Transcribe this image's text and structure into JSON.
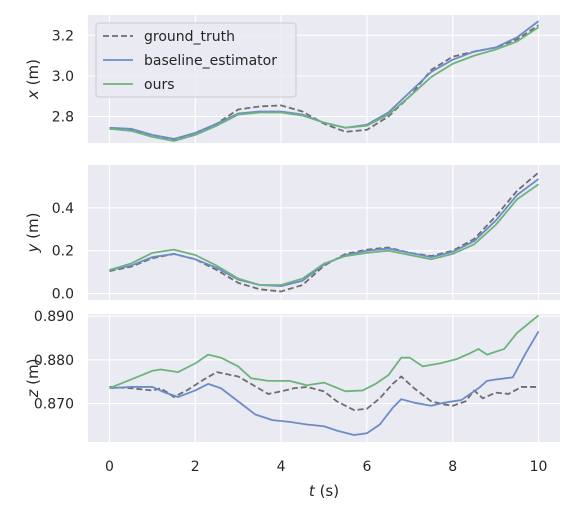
{
  "chart_data": [
    {
      "type": "line",
      "ylabel_var": "x",
      "ylabel_unit": " (m)",
      "ylim": [
        2.67,
        3.3
      ],
      "yticks": [
        "2.8",
        "3.0",
        "3.2"
      ],
      "ytick_values": [
        2.8,
        3.0,
        3.2
      ],
      "grid": true,
      "legend": "top-left",
      "series": [
        {
          "name": "ground_truth",
          "style": "dashed",
          "color": "#6e6e6e",
          "points": [
            [
              0,
              2.74
            ],
            [
              0.5,
              2.735
            ],
            [
              1,
              2.7
            ],
            [
              1.5,
              2.685
            ],
            [
              2,
              2.71
            ],
            [
              2.5,
              2.765
            ],
            [
              3,
              2.835
            ],
            [
              3.5,
              2.85
            ],
            [
              4,
              2.855
            ],
            [
              4.5,
              2.825
            ],
            [
              5,
              2.765
            ],
            [
              5.5,
              2.725
            ],
            [
              6,
              2.735
            ],
            [
              6.5,
              2.8
            ],
            [
              7,
              2.9
            ],
            [
              7.5,
              3.03
            ],
            [
              8,
              3.095
            ],
            [
              8.5,
              3.12
            ],
            [
              9,
              3.14
            ],
            [
              9.5,
              3.18
            ],
            [
              10,
              3.25
            ]
          ]
        },
        {
          "name": "baseline_estimator",
          "style": "solid",
          "color": "#6d8cc7",
          "points": [
            [
              0,
              2.745
            ],
            [
              0.5,
              2.74
            ],
            [
              1,
              2.71
            ],
            [
              1.5,
              2.69
            ],
            [
              2,
              2.72
            ],
            [
              2.5,
              2.765
            ],
            [
              3,
              2.815
            ],
            [
              3.5,
              2.825
            ],
            [
              4,
              2.825
            ],
            [
              4.5,
              2.81
            ],
            [
              5,
              2.77
            ],
            [
              5.5,
              2.745
            ],
            [
              6,
              2.76
            ],
            [
              6.5,
              2.82
            ],
            [
              7,
              2.92
            ],
            [
              7.5,
              3.02
            ],
            [
              8,
              3.08
            ],
            [
              8.5,
              3.12
            ],
            [
              9,
              3.14
            ],
            [
              9.5,
              3.19
            ],
            [
              10,
              3.27
            ]
          ]
        },
        {
          "name": "ours",
          "style": "solid",
          "color": "#6db37d",
          "points": [
            [
              0,
              2.74
            ],
            [
              0.5,
              2.73
            ],
            [
              1,
              2.7
            ],
            [
              1.5,
              2.68
            ],
            [
              2,
              2.71
            ],
            [
              2.5,
              2.755
            ],
            [
              3,
              2.81
            ],
            [
              3.5,
              2.82
            ],
            [
              4,
              2.82
            ],
            [
              4.5,
              2.805
            ],
            [
              5,
              2.77
            ],
            [
              5.5,
              2.745
            ],
            [
              6,
              2.755
            ],
            [
              6.5,
              2.81
            ],
            [
              7,
              2.9
            ],
            [
              7.5,
              2.995
            ],
            [
              8,
              3.06
            ],
            [
              8.5,
              3.1
            ],
            [
              9,
              3.13
            ],
            [
              9.5,
              3.17
            ],
            [
              10,
              3.24
            ]
          ]
        }
      ]
    },
    {
      "type": "line",
      "ylabel_var": "y",
      "ylabel_unit": " (m)",
      "ylim": [
        -0.03,
        0.6
      ],
      "yticks": [
        "0.0",
        "0.2",
        "0.4"
      ],
      "ytick_values": [
        0.0,
        0.2,
        0.4
      ],
      "grid": true,
      "series": [
        {
          "name": "ground_truth",
          "style": "dashed",
          "color": "#6e6e6e",
          "points": [
            [
              0,
              0.105
            ],
            [
              0.5,
              0.125
            ],
            [
              1,
              0.165
            ],
            [
              1.5,
              0.185
            ],
            [
              2,
              0.16
            ],
            [
              2.5,
              0.11
            ],
            [
              3,
              0.05
            ],
            [
              3.5,
              0.02
            ],
            [
              4,
              0.01
            ],
            [
              4.5,
              0.04
            ],
            [
              5,
              0.13
            ],
            [
              5.5,
              0.185
            ],
            [
              6,
              0.205
            ],
            [
              6.5,
              0.215
            ],
            [
              7,
              0.19
            ],
            [
              7.5,
              0.175
            ],
            [
              8,
              0.2
            ],
            [
              8.5,
              0.255
            ],
            [
              9,
              0.36
            ],
            [
              9.5,
              0.48
            ],
            [
              10,
              0.565
            ]
          ]
        },
        {
          "name": "baseline_estimator",
          "style": "solid",
          "color": "#6d8cc7",
          "points": [
            [
              0,
              0.11
            ],
            [
              0.5,
              0.13
            ],
            [
              1,
              0.17
            ],
            [
              1.5,
              0.185
            ],
            [
              2,
              0.16
            ],
            [
              2.5,
              0.12
            ],
            [
              3,
              0.065
            ],
            [
              3.5,
              0.04
            ],
            [
              4,
              0.035
            ],
            [
              4.5,
              0.06
            ],
            [
              5,
              0.135
            ],
            [
              5.5,
              0.18
            ],
            [
              6,
              0.2
            ],
            [
              6.5,
              0.21
            ],
            [
              7,
              0.19
            ],
            [
              7.5,
              0.17
            ],
            [
              8,
              0.195
            ],
            [
              8.5,
              0.245
            ],
            [
              9,
              0.34
            ],
            [
              9.5,
              0.46
            ],
            [
              10,
              0.535
            ]
          ]
        },
        {
          "name": "ours",
          "style": "solid",
          "color": "#6db37d",
          "points": [
            [
              0,
              0.11
            ],
            [
              0.5,
              0.14
            ],
            [
              1,
              0.19
            ],
            [
              1.5,
              0.205
            ],
            [
              2,
              0.18
            ],
            [
              2.5,
              0.13
            ],
            [
              3,
              0.07
            ],
            [
              3.5,
              0.04
            ],
            [
              4,
              0.04
            ],
            [
              4.5,
              0.07
            ],
            [
              5,
              0.14
            ],
            [
              5.5,
              0.175
            ],
            [
              6,
              0.19
            ],
            [
              6.5,
              0.2
            ],
            [
              7,
              0.18
            ],
            [
              7.5,
              0.16
            ],
            [
              8,
              0.185
            ],
            [
              8.5,
              0.23
            ],
            [
              9,
              0.32
            ],
            [
              9.5,
              0.44
            ],
            [
              10,
              0.51
            ]
          ]
        }
      ]
    },
    {
      "type": "line",
      "ylabel_var": "z",
      "ylabel_unit": " (m)",
      "ylim": [
        0.8612,
        0.8905
      ],
      "yticks": [
        "0.870",
        "0.875",
        "0.880",
        "0.885",
        "0.890"
      ],
      "ytick_labels_shown": [
        "0.870",
        "",
        "0.880",
        "",
        "0.890"
      ],
      "ytick_values": [
        0.87,
        0.88,
        0.89
      ],
      "grid": true,
      "xlabel_var": "t",
      "xlabel_unit": " (s)",
      "xlim": [
        -0.5,
        10.5
      ],
      "xticks": [
        "0",
        "2",
        "4",
        "6",
        "8",
        "10"
      ],
      "xtick_values": [
        0,
        2,
        4,
        6,
        8,
        10
      ],
      "series": [
        {
          "name": "ground_truth",
          "style": "dashed",
          "color": "#6e6e6e",
          "points": [
            [
              0,
              0.8738
            ],
            [
              0.5,
              0.8735
            ],
            [
              1,
              0.873
            ],
            [
              1.2,
              0.8735
            ],
            [
              1.5,
              0.8715
            ],
            [
              1.8,
              0.873
            ],
            [
              2.2,
              0.8755
            ],
            [
              2.5,
              0.8772
            ],
            [
              3,
              0.8762
            ],
            [
              3.3,
              0.8745
            ],
            [
              3.7,
              0.8722
            ],
            [
              4,
              0.8728
            ],
            [
              4.3,
              0.8735
            ],
            [
              4.6,
              0.8738
            ],
            [
              5,
              0.8728
            ],
            [
              5.3,
              0.8705
            ],
            [
              5.7,
              0.8685
            ],
            [
              6,
              0.8688
            ],
            [
              6.3,
              0.8712
            ],
            [
              6.6,
              0.8745
            ],
            [
              6.8,
              0.8762
            ],
            [
              7.1,
              0.8735
            ],
            [
              7.5,
              0.8705
            ],
            [
              7.8,
              0.8698
            ],
            [
              8,
              0.8695
            ],
            [
              8.3,
              0.8705
            ],
            [
              8.5,
              0.873
            ],
            [
              8.7,
              0.8712
            ],
            [
              9,
              0.8725
            ],
            [
              9.3,
              0.8722
            ],
            [
              9.6,
              0.8738
            ],
            [
              10,
              0.8738
            ]
          ]
        },
        {
          "name": "baseline_estimator",
          "style": "solid",
          "color": "#6d8cc7",
          "points": [
            [
              0,
              0.8735
            ],
            [
              0.5,
              0.8738
            ],
            [
              1,
              0.8738
            ],
            [
              1.3,
              0.8725
            ],
            [
              1.6,
              0.8715
            ],
            [
              2,
              0.873
            ],
            [
              2.3,
              0.8745
            ],
            [
              2.6,
              0.8735
            ],
            [
              3,
              0.8705
            ],
            [
              3.4,
              0.8675
            ],
            [
              3.8,
              0.8662
            ],
            [
              4.2,
              0.8658
            ],
            [
              4.6,
              0.8652
            ],
            [
              5,
              0.8648
            ],
            [
              5.3,
              0.8638
            ],
            [
              5.7,
              0.8628
            ],
            [
              6,
              0.8632
            ],
            [
              6.3,
              0.8652
            ],
            [
              6.6,
              0.869
            ],
            [
              6.8,
              0.871
            ],
            [
              7.1,
              0.8702
            ],
            [
              7.5,
              0.8695
            ],
            [
              7.8,
              0.8702
            ],
            [
              8.2,
              0.8708
            ],
            [
              8.6,
              0.8735
            ],
            [
              8.8,
              0.8752
            ],
            [
              9,
              0.8755
            ],
            [
              9.4,
              0.876
            ],
            [
              9.7,
              0.8815
            ],
            [
              10,
              0.8865
            ]
          ]
        },
        {
          "name": "ours",
          "style": "solid",
          "color": "#6db37d",
          "points": [
            [
              0,
              0.8735
            ],
            [
              0.5,
              0.8755
            ],
            [
              1,
              0.8775
            ],
            [
              1.2,
              0.8778
            ],
            [
              1.6,
              0.8772
            ],
            [
              2,
              0.8792
            ],
            [
              2.3,
              0.8812
            ],
            [
              2.6,
              0.8805
            ],
            [
              3,
              0.8785
            ],
            [
              3.3,
              0.8758
            ],
            [
              3.7,
              0.8752
            ],
            [
              4.2,
              0.8752
            ],
            [
              4.6,
              0.8742
            ],
            [
              5,
              0.8748
            ],
            [
              5.5,
              0.8728
            ],
            [
              5.9,
              0.873
            ],
            [
              6.2,
              0.8745
            ],
            [
              6.5,
              0.8765
            ],
            [
              6.8,
              0.8805
            ],
            [
              7,
              0.8805
            ],
            [
              7.3,
              0.8785
            ],
            [
              7.7,
              0.8792
            ],
            [
              8.1,
              0.8802
            ],
            [
              8.4,
              0.8815
            ],
            [
              8.6,
              0.8825
            ],
            [
              8.8,
              0.8812
            ],
            [
              9.2,
              0.8825
            ],
            [
              9.5,
              0.8862
            ],
            [
              10,
              0.8902
            ]
          ]
        }
      ]
    }
  ]
}
